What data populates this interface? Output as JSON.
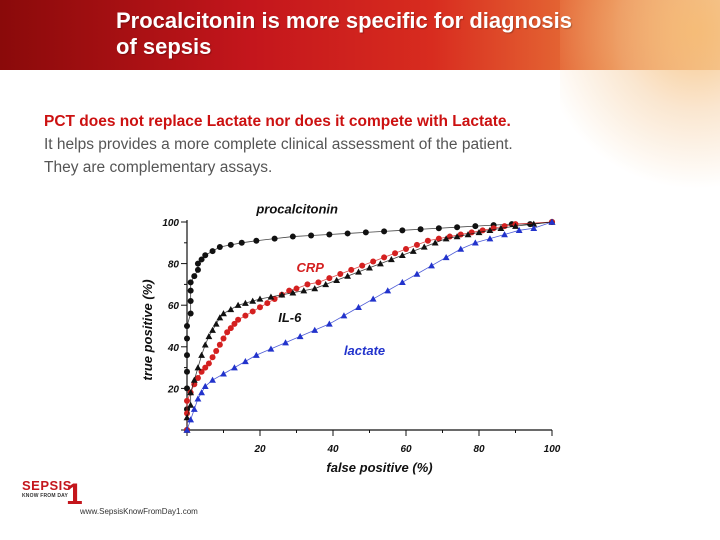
{
  "slide": {
    "title_line1": "Procalcitonin is more specific for diagnosis",
    "title_line2": "of sepsis",
    "lead": "PCT does not replace Lactate nor does it compete with Lactate.",
    "line2": "It helps provides a more complete clinical assessment of the patient.",
    "line3": "They are complementary assays."
  },
  "branding": {
    "logo_text": "SEPSIS",
    "logo_tagline": "KNOW FROM DAY",
    "logo_digit": "1",
    "url": "www.SepsisKnowFromDay1.com",
    "accent_color": "#c4161c"
  },
  "chart_data": {
    "type": "line",
    "xlabel": "false positive (%)",
    "ylabel": "true positive (%)",
    "xlim": [
      0,
      100
    ],
    "ylim": [
      0,
      100
    ],
    "xticks": [
      20,
      40,
      60,
      80,
      100
    ],
    "yticks": [
      20,
      40,
      60,
      80,
      100
    ],
    "grid": false,
    "series": [
      {
        "name": "procalcitonin",
        "color": "#111111",
        "marker": "circle",
        "points": [
          [
            0,
            0
          ],
          [
            0,
            10
          ],
          [
            0,
            20
          ],
          [
            0,
            28
          ],
          [
            0,
            36
          ],
          [
            0,
            44
          ],
          [
            0,
            50
          ],
          [
            1,
            56
          ],
          [
            1,
            62
          ],
          [
            1,
            67
          ],
          [
            1,
            71
          ],
          [
            2,
            74
          ],
          [
            3,
            77
          ],
          [
            3,
            80
          ],
          [
            4,
            82
          ],
          [
            5,
            84
          ],
          [
            7,
            86
          ],
          [
            9,
            88
          ],
          [
            12,
            89
          ],
          [
            15,
            90
          ],
          [
            19,
            91
          ],
          [
            24,
            92
          ],
          [
            29,
            93
          ],
          [
            34,
            93.5
          ],
          [
            39,
            94
          ],
          [
            44,
            94.5
          ],
          [
            49,
            95
          ],
          [
            54,
            95.5
          ],
          [
            59,
            96
          ],
          [
            64,
            96.5
          ],
          [
            69,
            97
          ],
          [
            74,
            97.5
          ],
          [
            79,
            98
          ],
          [
            84,
            98.5
          ],
          [
            89,
            99
          ],
          [
            94,
            99
          ],
          [
            100,
            100
          ]
        ]
      },
      {
        "name": "CRP",
        "color": "#d42020",
        "marker": "circle",
        "points": [
          [
            0,
            0
          ],
          [
            0,
            8
          ],
          [
            0,
            14
          ],
          [
            1,
            18
          ],
          [
            2,
            22
          ],
          [
            3,
            25
          ],
          [
            4,
            28
          ],
          [
            5,
            30
          ],
          [
            6,
            32
          ],
          [
            7,
            35
          ],
          [
            8,
            38
          ],
          [
            9,
            41
          ],
          [
            10,
            44
          ],
          [
            11,
            47
          ],
          [
            12,
            49
          ],
          [
            13,
            51
          ],
          [
            14,
            53
          ],
          [
            16,
            55
          ],
          [
            18,
            57
          ],
          [
            20,
            59
          ],
          [
            22,
            61
          ],
          [
            24,
            63
          ],
          [
            26,
            65
          ],
          [
            28,
            67
          ],
          [
            30,
            68
          ],
          [
            33,
            70
          ],
          [
            36,
            71
          ],
          [
            39,
            73
          ],
          [
            42,
            75
          ],
          [
            45,
            77
          ],
          [
            48,
            79
          ],
          [
            51,
            81
          ],
          [
            54,
            83
          ],
          [
            57,
            85
          ],
          [
            60,
            87
          ],
          [
            63,
            89
          ],
          [
            66,
            91
          ],
          [
            69,
            92
          ],
          [
            72,
            93
          ],
          [
            75,
            94
          ],
          [
            78,
            95
          ],
          [
            81,
            96
          ],
          [
            84,
            97
          ],
          [
            87,
            98
          ],
          [
            90,
            99
          ],
          [
            100,
            100
          ]
        ]
      },
      {
        "name": "IL-6",
        "color": "#111111",
        "marker": "triangle",
        "points": [
          [
            0,
            0
          ],
          [
            0,
            6
          ],
          [
            1,
            12
          ],
          [
            1,
            18
          ],
          [
            2,
            24
          ],
          [
            3,
            30
          ],
          [
            4,
            36
          ],
          [
            5,
            41
          ],
          [
            6,
            45
          ],
          [
            7,
            48
          ],
          [
            8,
            51
          ],
          [
            9,
            54
          ],
          [
            10,
            56
          ],
          [
            12,
            58
          ],
          [
            14,
            60
          ],
          [
            16,
            61
          ],
          [
            18,
            62
          ],
          [
            20,
            63
          ],
          [
            23,
            64
          ],
          [
            26,
            65
          ],
          [
            29,
            66
          ],
          [
            32,
            67
          ],
          [
            35,
            68
          ],
          [
            38,
            70
          ],
          [
            41,
            72
          ],
          [
            44,
            74
          ],
          [
            47,
            76
          ],
          [
            50,
            78
          ],
          [
            53,
            80
          ],
          [
            56,
            82
          ],
          [
            59,
            84
          ],
          [
            62,
            86
          ],
          [
            65,
            88
          ],
          [
            68,
            90
          ],
          [
            71,
            92
          ],
          [
            74,
            93
          ],
          [
            77,
            94
          ],
          [
            80,
            95
          ],
          [
            83,
            96
          ],
          [
            86,
            97
          ],
          [
            90,
            98
          ],
          [
            95,
            99
          ],
          [
            100,
            100
          ]
        ]
      },
      {
        "name": "lactate",
        "color": "#2233cc",
        "marker": "triangle",
        "points": [
          [
            0,
            0
          ],
          [
            1,
            5
          ],
          [
            2,
            10
          ],
          [
            3,
            15
          ],
          [
            4,
            18
          ],
          [
            5,
            21
          ],
          [
            7,
            24
          ],
          [
            10,
            27
          ],
          [
            13,
            30
          ],
          [
            16,
            33
          ],
          [
            19,
            36
          ],
          [
            23,
            39
          ],
          [
            27,
            42
          ],
          [
            31,
            45
          ],
          [
            35,
            48
          ],
          [
            39,
            51
          ],
          [
            43,
            55
          ],
          [
            47,
            59
          ],
          [
            51,
            63
          ],
          [
            55,
            67
          ],
          [
            59,
            71
          ],
          [
            63,
            75
          ],
          [
            67,
            79
          ],
          [
            71,
            83
          ],
          [
            75,
            87
          ],
          [
            79,
            90
          ],
          [
            83,
            92
          ],
          [
            87,
            94
          ],
          [
            91,
            96
          ],
          [
            95,
            97
          ],
          [
            100,
            100
          ]
        ]
      }
    ],
    "annotations": [
      {
        "text": "procalcitonin",
        "x": 19,
        "y": 104,
        "color": "#111111"
      },
      {
        "text": "CRP",
        "x": 30,
        "y": 76,
        "color": "#d42020"
      },
      {
        "text": "IL-6",
        "x": 25,
        "y": 52,
        "color": "#111111"
      },
      {
        "text": "lactate",
        "x": 43,
        "y": 36,
        "color": "#2233cc"
      }
    ]
  }
}
